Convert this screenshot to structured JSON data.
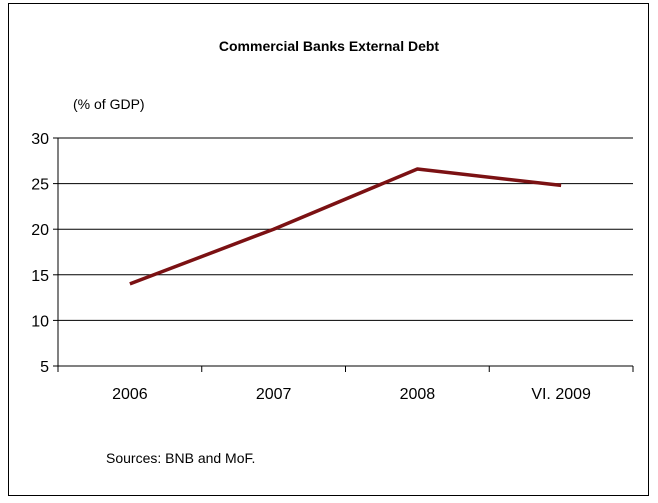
{
  "chart_data": {
    "type": "line",
    "title": "Commercial Banks External Debt",
    "unit_label": "(% of GDP)",
    "source": "Sources: BNB and MoF.",
    "categories": [
      "2006",
      "2007",
      "2008",
      "VI. 2009"
    ],
    "series": [
      {
        "values": [
          14.0,
          20.0,
          26.6,
          24.8
        ]
      }
    ],
    "ylim": [
      5,
      30
    ],
    "yticks": [
      "5",
      "10",
      "15",
      "20",
      "25",
      "30"
    ],
    "grid": true,
    "line_color": "#7b1113"
  }
}
